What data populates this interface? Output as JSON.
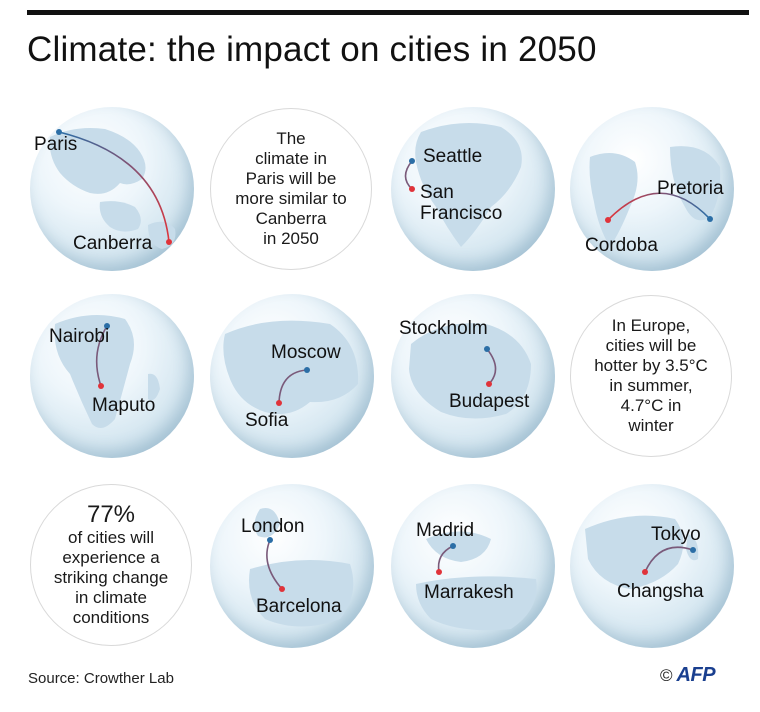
{
  "title": "Climate: the impact on cities in 2050",
  "colors": {
    "from_dot": "#2b6ea6",
    "to_dot": "#e0333a"
  },
  "pairs": [
    {
      "from": "Paris",
      "to": "Canberra"
    },
    {
      "from": "Seattle",
      "to": "San Francisco"
    },
    {
      "from": "Pretoria",
      "to": "Cordoba"
    },
    {
      "from": "Nairobi",
      "to": "Maputo"
    },
    {
      "from": "Moscow",
      "to": "Sofia"
    },
    {
      "from": "Stockholm",
      "to": "Budapest"
    },
    {
      "from": "London",
      "to": "Barcelona"
    },
    {
      "from": "Madrid",
      "to": "Marrakesh"
    },
    {
      "from": "Tokyo",
      "to": "Changsha"
    }
  ],
  "notes": {
    "paris": [
      "The",
      "climate in",
      "Paris will be",
      "more similar to",
      "Canberra",
      "in 2050"
    ],
    "europe": [
      "In Europe,",
      "cities will be",
      "hotter by 3.5°C",
      "in summer,",
      "4.7°C in",
      "winter"
    ],
    "stat_value": "77%",
    "stat_lines": [
      "of cities will",
      "experience a",
      "striking change",
      "in climate",
      "conditions"
    ]
  },
  "footer": {
    "source": "Source: Crowther Lab",
    "copyright": "©",
    "agency": "AFP"
  }
}
